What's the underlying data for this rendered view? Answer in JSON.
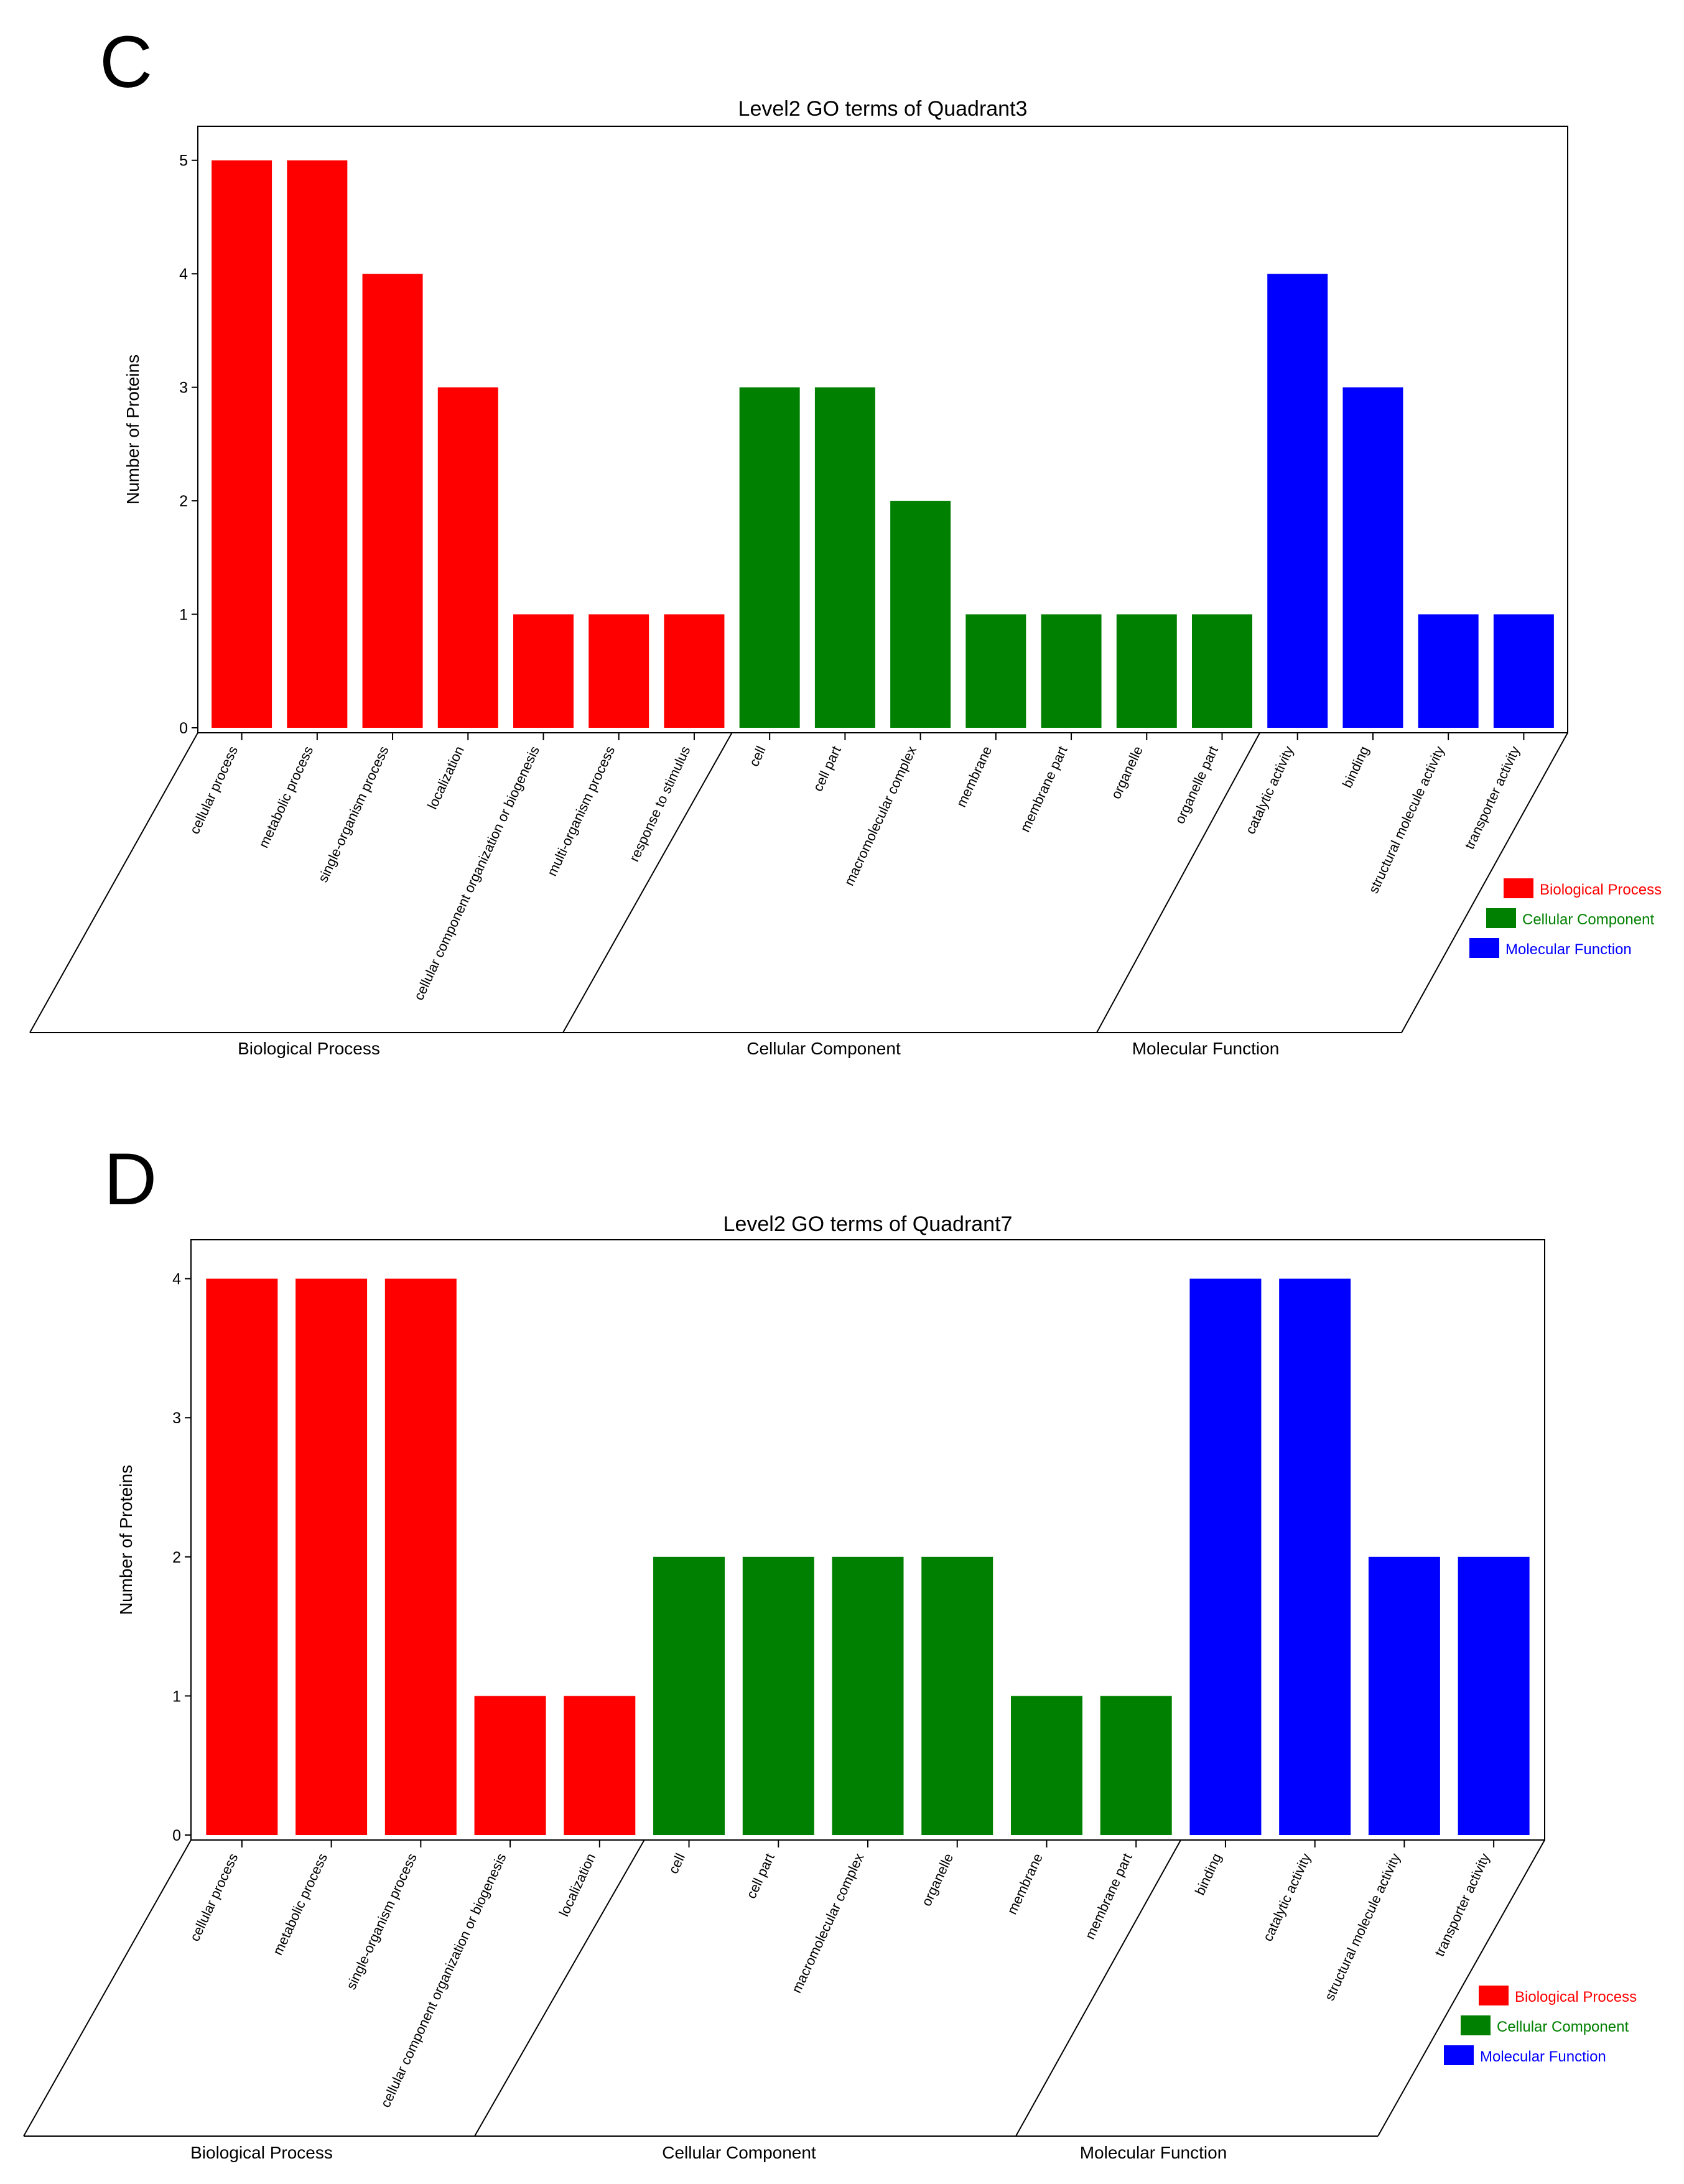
{
  "chart_data": [
    {
      "panel_label": "C",
      "type": "bar",
      "title": "Level2 GO terms of Quadrant3",
      "ylabel": "Number of Proteins",
      "xlabel": "",
      "ylim": [
        0,
        5.3
      ],
      "yticks": [
        0,
        1,
        2,
        3,
        4,
        5
      ],
      "grid": false,
      "legend_position": "right, below plot",
      "groups": [
        {
          "name": "Biological Process",
          "color": "#ff0000",
          "categories": [
            "cellular process",
            "metabolic process",
            "single-organism process",
            "localization",
            "cellular component organization or biogenesis",
            "multi-organism process",
            "response to stimulus"
          ],
          "values": [
            5,
            5,
            4,
            3,
            1,
            1,
            1
          ]
        },
        {
          "name": "Cellular Component",
          "color": "#008000",
          "categories": [
            "cell",
            "cell part",
            "macromolecular complex",
            "membrane",
            "membrane part",
            "organelle",
            "organelle part"
          ],
          "values": [
            3,
            3,
            2,
            1,
            1,
            1,
            1
          ]
        },
        {
          "name": "Molecular Function",
          "color": "#0000ff",
          "categories": [
            "catalytic activity",
            "binding",
            "structural molecule activity",
            "transporter activity"
          ],
          "values": [
            4,
            3,
            1,
            1
          ]
        }
      ]
    },
    {
      "panel_label": "D",
      "type": "bar",
      "title": "Level2 GO terms of Quadrant7",
      "ylabel": "Number of Proteins",
      "xlabel": "",
      "ylim": [
        0,
        4.28
      ],
      "yticks": [
        0,
        1,
        2,
        3,
        4
      ],
      "grid": false,
      "legend_position": "right, below plot",
      "groups": [
        {
          "name": "Biological Process",
          "color": "#ff0000",
          "categories": [
            "cellular process",
            "metabolic process",
            "single-organism process",
            "cellular component organization or biogenesis",
            "localization"
          ],
          "values": [
            4,
            4,
            4,
            1,
            1
          ]
        },
        {
          "name": "Cellular Component",
          "color": "#008000",
          "categories": [
            "cell",
            "cell part",
            "macromolecular complex",
            "organelle",
            "membrane",
            "membrane part"
          ],
          "values": [
            2,
            2,
            2,
            2,
            1,
            1
          ]
        },
        {
          "name": "Molecular Function",
          "color": "#0000ff",
          "categories": [
            "binding",
            "catalytic activity",
            "structural molecule activity",
            "transporter activity"
          ],
          "values": [
            4,
            4,
            2,
            2
          ]
        }
      ]
    }
  ]
}
